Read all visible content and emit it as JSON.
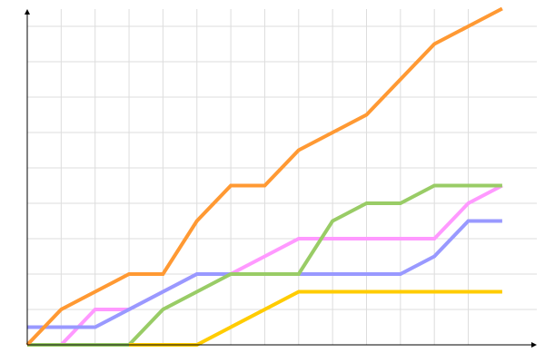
{
  "chart_data": {
    "type": "line",
    "title": "",
    "xlabel": "",
    "ylabel": "",
    "x": [
      0,
      1,
      2,
      3,
      4,
      5,
      6,
      7,
      8,
      9,
      10,
      11,
      12,
      13,
      14
    ],
    "xlim": [
      0,
      15
    ],
    "ylim": [
      0,
      19
    ],
    "grid": true,
    "x_grid_step": 1,
    "y_grid_step": 2,
    "legend": "none",
    "series": [
      {
        "color": "#ff99ff",
        "values": [
          null,
          0,
          2,
          2,
          3,
          4,
          4,
          5,
          6,
          6,
          6,
          6,
          6,
          8,
          9
        ]
      },
      {
        "color": "#9999ff",
        "values": [
          1,
          1,
          1,
          2,
          3,
          4,
          4,
          4,
          4,
          4,
          4,
          4,
          5,
          7,
          7
        ]
      },
      {
        "color": "#99cc66",
        "values": [
          0,
          0,
          0,
          0,
          2,
          3,
          4,
          4,
          4,
          7,
          8,
          8,
          9,
          9,
          9
        ]
      },
      {
        "color": "#ffcc00",
        "values": [
          null,
          null,
          null,
          0,
          0,
          0,
          1,
          2,
          3,
          3,
          3,
          3,
          3,
          3,
          3
        ]
      },
      {
        "color": "#ff9933",
        "values": [
          0,
          2,
          3,
          4,
          4,
          7,
          9,
          9,
          11,
          12,
          13,
          15,
          17,
          18,
          19
        ]
      }
    ]
  }
}
